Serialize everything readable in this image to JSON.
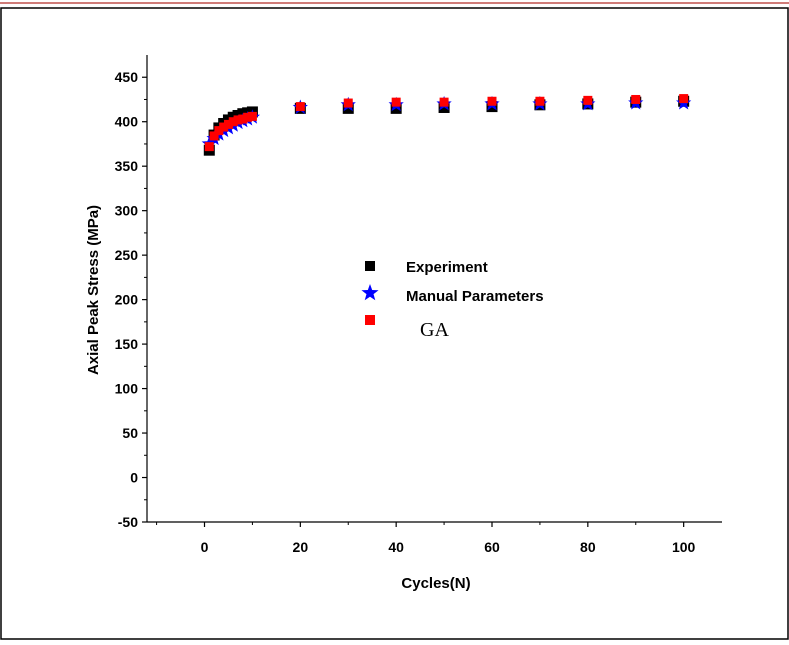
{
  "colors": {
    "frame_top": "#c0504d",
    "experiment": "#000000",
    "manual": "#0000ff",
    "ga": "#ff0000"
  },
  "chart_data": {
    "type": "scatter",
    "title": "",
    "xlabel": "Cycles(N)",
    "ylabel": "Axial Peak Stress (MPa)",
    "xlim": [
      -12,
      108
    ],
    "ylim": [
      -50,
      475
    ],
    "x_ticks": [
      0,
      20,
      40,
      60,
      80,
      100
    ],
    "y_ticks": [
      -50,
      0,
      50,
      100,
      150,
      200,
      250,
      300,
      350,
      400,
      450
    ],
    "grid": false,
    "legend_position": "center",
    "series": [
      {
        "name": "Experiment",
        "marker": "square",
        "color": "#000000",
        "x": [
          1,
          2,
          3,
          4,
          5,
          6,
          7,
          8,
          9,
          10,
          20,
          30,
          40,
          50,
          60,
          70,
          80,
          90,
          100
        ],
        "y": [
          368,
          385,
          393,
          398,
          402,
          405,
          407,
          409,
          410,
          411,
          415,
          415,
          415,
          416,
          417,
          419,
          420,
          422,
          423
        ]
      },
      {
        "name": "Manual Parameters",
        "marker": "star",
        "color": "#0000ff",
        "x": [
          1,
          2,
          3,
          4,
          5,
          6,
          7,
          8,
          9,
          10,
          20,
          30,
          40,
          50,
          60,
          70,
          80,
          90,
          100
        ],
        "y": [
          375,
          381,
          386,
          390,
          393,
          396,
          399,
          401,
          403,
          405,
          416,
          419,
          419,
          420,
          420,
          420,
          420,
          421,
          421
        ]
      },
      {
        "name": "GA",
        "marker": "square",
        "color": "#ff0000",
        "x": [
          1,
          2,
          3,
          4,
          5,
          6,
          7,
          8,
          9,
          10,
          20,
          30,
          40,
          50,
          60,
          70,
          80,
          90,
          100
        ],
        "y": [
          372,
          384,
          390,
          394,
          397,
          400,
          402,
          403,
          405,
          406,
          417,
          421,
          422,
          422,
          423,
          423,
          424,
          425,
          426
        ]
      }
    ]
  }
}
